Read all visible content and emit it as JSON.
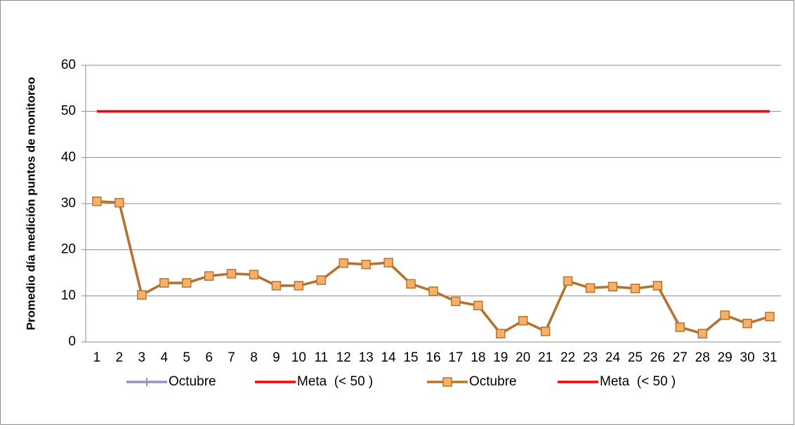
{
  "chart_data": {
    "type": "line",
    "y_label": "Promedio día medición puntos de monitoreo",
    "categories": [
      "1",
      "2",
      "3",
      "4",
      "5",
      "6",
      "7",
      "8",
      "9",
      "10",
      "11",
      "12",
      "13",
      "14",
      "15",
      "16",
      "17",
      "18",
      "19",
      "20",
      "21",
      "22",
      "23",
      "24",
      "25",
      "26",
      "27",
      "28",
      "29",
      "30",
      "31"
    ],
    "series": [
      {
        "name": "Octubre",
        "color": "#9b8fc4",
        "marker": "plus",
        "values": [
          30.5,
          30.2,
          10.2,
          12.8,
          12.8,
          14.3,
          14.8,
          14.6,
          12.2,
          12.2,
          13.4,
          17.1,
          16.8,
          17.2,
          12.6,
          11.0,
          8.8,
          7.9,
          1.8,
          4.6,
          2.3,
          13.2,
          11.7,
          12.0,
          11.6,
          12.2,
          3.2,
          1.8,
          5.8,
          4.0,
          5.5
        ]
      },
      {
        "name": "Meta  (< 50 )",
        "color": "#ff0000",
        "values": [
          50,
          50,
          50,
          50,
          50,
          50,
          50,
          50,
          50,
          50,
          50,
          50,
          50,
          50,
          50,
          50,
          50,
          50,
          50,
          50,
          50,
          50,
          50,
          50,
          50,
          50,
          50,
          50,
          50,
          50,
          50
        ]
      },
      {
        "name": "Octubre",
        "color": "#b5742d",
        "marker": "square",
        "marker_fill": "#f6b06a",
        "values": [
          30.5,
          30.2,
          10.2,
          12.8,
          12.8,
          14.3,
          14.8,
          14.6,
          12.2,
          12.2,
          13.4,
          17.1,
          16.8,
          17.2,
          12.6,
          11.0,
          8.8,
          7.9,
          1.8,
          4.6,
          2.3,
          13.2,
          11.7,
          12.0,
          11.6,
          12.2,
          3.2,
          1.8,
          5.8,
          4.0,
          5.5
        ]
      },
      {
        "name": "Meta  (< 50 )",
        "color": "#ff0000",
        "values": [
          50,
          50,
          50,
          50,
          50,
          50,
          50,
          50,
          50,
          50,
          50,
          50,
          50,
          50,
          50,
          50,
          50,
          50,
          50,
          50,
          50,
          50,
          50,
          50,
          50,
          50,
          50,
          50,
          50,
          50,
          50
        ]
      }
    ],
    "ylim": [
      0,
      60
    ],
    "yticks": [
      0,
      10,
      20,
      30,
      40,
      50,
      60
    ],
    "grid": true,
    "legend": "bottom"
  }
}
